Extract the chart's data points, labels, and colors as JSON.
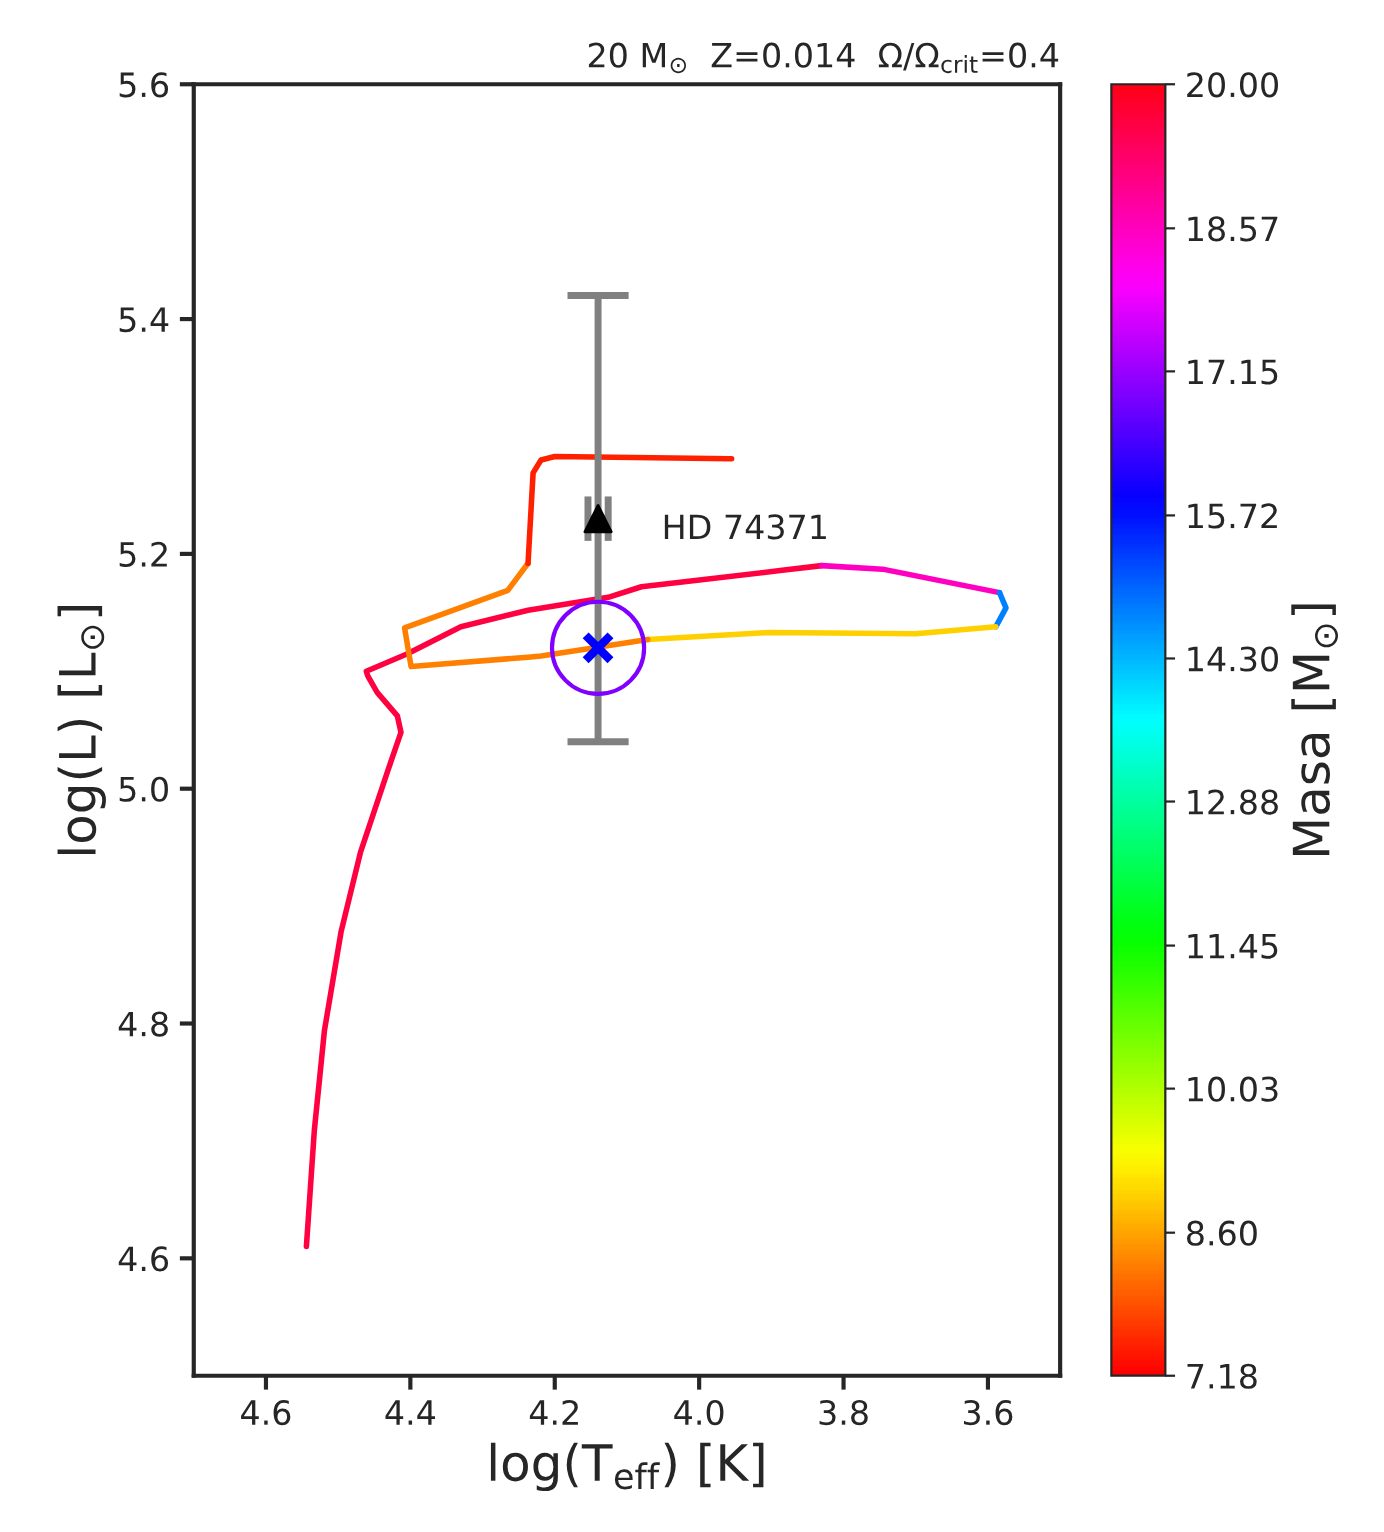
{
  "chart_data": {
    "type": "line",
    "title": "20 M$_{⊙}$  Z=0.014  Ω/Ω$_{crit}$=0.4",
    "xlabel": "log(T$_{eff}$) [K]",
    "ylabel": "log(L) [L$_{⊙}$]",
    "clabel": "Masa [M$_{⊙}$]",
    "xlim": [
      4.7,
      3.5
    ],
    "xticks": [
      4.6,
      4.4,
      4.2,
      {
        "value": 4.0,
        "label": "4.0"
      },
      3.8,
      3.6
    ],
    "ylim": [
      4.5,
      5.6
    ],
    "yticks": [
      4.6,
      4.8,
      {
        "value": 5.0,
        "label": "5.0"
      },
      5.2,
      5.4,
      5.6
    ],
    "clim": [
      7.18,
      20.0
    ],
    "cticks": [
      7.18,
      {
        "value": 8.6,
        "label": "8.60"
      },
      10.03,
      11.45,
      12.88,
      {
        "value": 14.3,
        "label": "14.30"
      },
      15.72,
      17.15,
      18.57,
      {
        "value": 20.0,
        "label": "20.00"
      }
    ],
    "grid": false,
    "legend": false,
    "annotations": [
      "HD 74371"
    ],
    "series": [
      {
        "marker": "none",
        "color": "#ff0040",
        "x": [
          4.544,
          4.533,
          4.519,
          4.496,
          4.469,
          4.432,
          4.413,
          4.418,
          4.446,
          4.459,
          4.461,
          4.404,
          4.33,
          4.237,
          4.126,
          4.08,
          3.885,
          3.83
        ],
        "values": [
          4.61,
          4.709,
          4.794,
          4.878,
          4.946,
          5.014,
          5.048,
          5.062,
          5.082,
          5.096,
          5.1,
          5.115,
          5.138,
          5.152,
          5.163,
          5.172,
          5.186,
          5.19
        ]
      },
      {
        "marker": "none",
        "color": "#ff00c0",
        "x": [
          3.83,
          3.746,
          3.584
        ],
        "values": [
          5.19,
          5.187,
          5.167
        ]
      },
      {
        "marker": "none",
        "color": "#0080ff",
        "x": [
          3.584,
          3.575,
          3.589
        ],
        "values": [
          5.167,
          5.154,
          5.138
        ]
      },
      {
        "marker": "none",
        "color": "#ffd000",
        "x": [
          3.589,
          3.7,
          3.904,
          4.071
        ],
        "values": [
          5.138,
          5.132,
          5.133,
          5.127
        ]
      },
      {
        "marker": "none",
        "color": "#ff8000",
        "x": [
          4.071,
          4.219,
          4.237,
          4.399,
          4.408,
          4.265,
          4.237
        ],
        "values": [
          5.127,
          5.113,
          5.112,
          5.104,
          5.137,
          5.169,
          5.192
        ]
      },
      {
        "marker": "none",
        "color": "#ff2000",
        "x": [
          4.237,
          4.23,
          4.219,
          4.2,
          3.955
        ],
        "values": [
          5.192,
          5.269,
          5.28,
          5.283,
          5.281
        ]
      },
      {
        "type": "scatter",
        "marker": "circle",
        "color": "#8000ff",
        "x": [
          4.14
        ],
        "values": [
          5.12
        ]
      },
      {
        "type": "scatter",
        "marker": "cross",
        "color": "#0000ff",
        "x": [
          4.14
        ],
        "values": [
          5.12
        ],
        "errors": [
          [
            5.04,
            5.42
          ]
        ]
      },
      {
        "type": "scatter",
        "marker": "triangle",
        "color": "#000000",
        "x": [
          4.14
        ],
        "values": [
          5.23
        ],
        "xerrors": [
          0.014
        ]
      }
    ]
  }
}
